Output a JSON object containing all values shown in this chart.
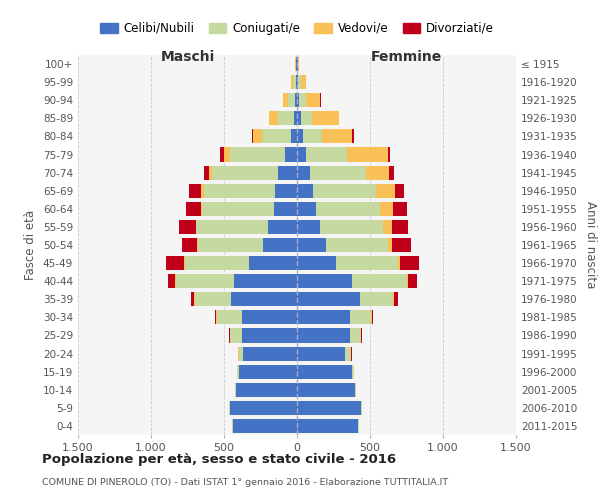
{
  "age_groups": [
    "0-4",
    "5-9",
    "10-14",
    "15-19",
    "20-24",
    "25-29",
    "30-34",
    "35-39",
    "40-44",
    "45-49",
    "50-54",
    "55-59",
    "60-64",
    "65-69",
    "70-74",
    "75-79",
    "80-84",
    "85-89",
    "90-94",
    "95-99",
    "100+"
  ],
  "birth_years": [
    "2011-2015",
    "2006-2010",
    "2001-2005",
    "1996-2000",
    "1991-1995",
    "1986-1990",
    "1981-1985",
    "1976-1980",
    "1971-1975",
    "1966-1970",
    "1961-1965",
    "1956-1960",
    "1951-1955",
    "1946-1950",
    "1941-1945",
    "1936-1940",
    "1931-1935",
    "1926-1930",
    "1921-1925",
    "1916-1920",
    "≤ 1915"
  ],
  "male": {
    "celibi": [
      440,
      460,
      420,
      400,
      370,
      380,
      380,
      450,
      430,
      330,
      230,
      200,
      160,
      150,
      130,
      80,
      40,
      20,
      15,
      10,
      5
    ],
    "coniugati": [
      5,
      5,
      5,
      10,
      30,
      80,
      170,
      250,
      400,
      440,
      450,
      490,
      490,
      490,
      450,
      380,
      200,
      110,
      50,
      20,
      5
    ],
    "vedovi": [
      0,
      0,
      0,
      1,
      1,
      2,
      2,
      3,
      5,
      5,
      5,
      5,
      10,
      20,
      20,
      40,
      60,
      60,
      30,
      8,
      2
    ],
    "divorziati": [
      0,
      0,
      0,
      1,
      2,
      5,
      10,
      20,
      50,
      120,
      100,
      110,
      100,
      80,
      40,
      25,
      10,
      5,
      3,
      2,
      1
    ]
  },
  "female": {
    "nubili": [
      420,
      440,
      400,
      380,
      330,
      360,
      360,
      430,
      380,
      270,
      200,
      160,
      130,
      110,
      90,
      60,
      40,
      25,
      15,
      10,
      5
    ],
    "coniugate": [
      5,
      5,
      5,
      10,
      40,
      75,
      150,
      230,
      370,
      420,
      420,
      430,
      440,
      430,
      380,
      280,
      130,
      80,
      45,
      15,
      5
    ],
    "vedove": [
      0,
      0,
      0,
      1,
      1,
      2,
      3,
      5,
      10,
      15,
      30,
      60,
      90,
      130,
      160,
      280,
      210,
      180,
      100,
      35,
      5
    ],
    "divorziate": [
      0,
      0,
      0,
      1,
      3,
      5,
      10,
      25,
      60,
      130,
      130,
      110,
      90,
      65,
      35,
      20,
      10,
      5,
      3,
      2,
      1
    ]
  },
  "colors": {
    "celibi": "#4472C4",
    "coniugati": "#C5D9A0",
    "vedovi": "#FAC058",
    "divorziati": "#C0001A"
  },
  "title": "Popolazione per età, sesso e stato civile - 2016",
  "subtitle": "COMUNE DI PINEROLO (TO) - Dati ISTAT 1° gennaio 2016 - Elaborazione TUTTITALIA.IT",
  "xlabel_left": "Maschi",
  "xlabel_right": "Femmine",
  "ylabel_left": "Fasce di età",
  "ylabel_right": "Anni di nascita",
  "xlim": 1500,
  "legend_labels": [
    "Celibi/Nubili",
    "Coniugati/e",
    "Vedovi/e",
    "Divorziati/e"
  ],
  "xtick_vals": [
    -1500,
    -1000,
    -500,
    0,
    500,
    1000,
    1500
  ],
  "xtick_labels": [
    "1.500",
    "1.000",
    "500",
    "0",
    "500",
    "1.000",
    "1.500"
  ]
}
